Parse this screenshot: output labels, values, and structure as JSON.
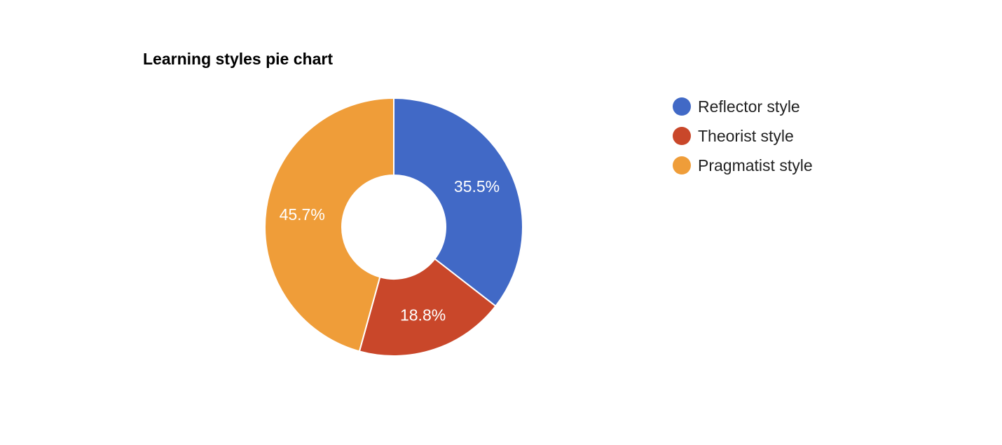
{
  "chart_data": {
    "type": "pie",
    "donut": true,
    "title": "Learning styles pie chart",
    "categories": [
      "Reflector style",
      "Theorist style",
      "Pragmatist style"
    ],
    "values": [
      35.5,
      18.8,
      45.7
    ],
    "value_labels": [
      "35.5%",
      "18.8%",
      "45.7%"
    ],
    "colors": [
      "#4169c6",
      "#c9472a",
      "#ef9d39"
    ],
    "legend_position": "right"
  }
}
